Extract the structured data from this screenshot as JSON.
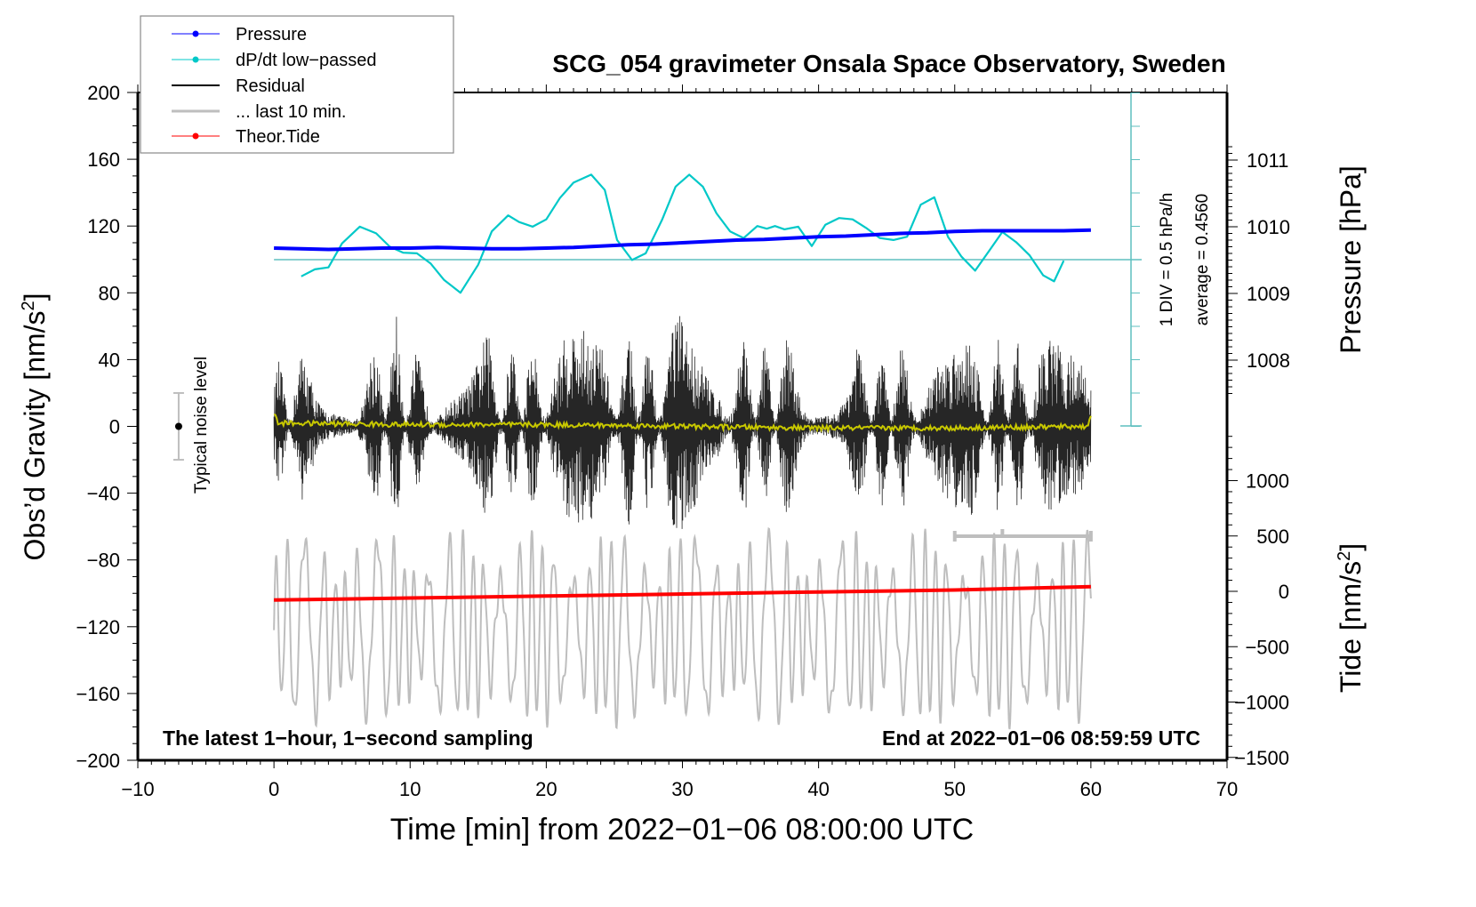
{
  "chart_data": {
    "type": "line",
    "title": "SCG_054 gravimeter Onsala Space Observatory, Sweden",
    "xlabel": "Time [min] from 2022−01−06 08:00:00 UTC",
    "ylabel_left": "Obs’d Gravity [nm/s",
    "ylabel_left_sup": "2",
    "ylabel_left_end": "]",
    "ylabel_right_pressure": "Pressure [hPa]",
    "ylabel_right_tide": "Tide [nm/s",
    "ylabel_right_tide_sup": "2",
    "ylabel_right_tide_end": "]",
    "xlim": [
      -10,
      70
    ],
    "xticks": [
      -10,
      0,
      10,
      20,
      30,
      40,
      50,
      60,
      70
    ],
    "xtick_labels": [
      "−10",
      "0",
      "10",
      "20",
      "30",
      "40",
      "50",
      "60",
      "70"
    ],
    "ylim_left": [
      -200,
      200
    ],
    "yticks_left": [
      200,
      160,
      120,
      80,
      40,
      0,
      -40,
      -80,
      -120,
      -160,
      -200
    ],
    "ytick_labels_left": [
      "200",
      "160",
      "120",
      "80",
      "40",
      "0",
      "−40",
      "−80",
      "−120",
      "−160",
      "−200"
    ],
    "pressure_ticks": [
      1011,
      1010,
      1009,
      1008
    ],
    "pressure_tick_labels": [
      "1011",
      "1010",
      "1009",
      "1008"
    ],
    "tide_ticks": [
      1000,
      500,
      0,
      -500,
      -1000,
      -1500
    ],
    "tide_tick_labels": [
      "1000",
      "500",
      "0",
      "−500",
      "−1000",
      "−1500"
    ],
    "legend": {
      "placement": "top-left",
      "entries": [
        {
          "label": "Pressure",
          "color": "#0000ff",
          "marker": true
        },
        {
          "label": "dP/dt low−passed",
          "color": "#00c8c8",
          "marker": true
        },
        {
          "label": "Residual",
          "color": "#000000",
          "marker": false
        },
        {
          "label": "... last 10 min.",
          "color": "#bebebe",
          "marker": false
        },
        {
          "label": "Theor.Tide",
          "color": "#ff0000",
          "marker": true
        }
      ]
    },
    "annotations": {
      "bottom_left": "The latest 1−hour, 1−second sampling",
      "bottom_right": "End at 2022−01−06 08:59:59 UTC",
      "noise_label": "Typical noise level",
      "dpdt_scale": "1 DIV = 0.5 hPa/h",
      "dpdt_average": "average = 0.4560"
    },
    "noise_bar": {
      "x": -7,
      "center": 0,
      "half_range": 20
    },
    "last10_bar": {
      "x_start": 50,
      "x_end": 60,
      "mid": 53.5
    },
    "dpdt_average_hpa_per_h": 0.456,
    "dpdt_div_hpa_per_h": 0.5,
    "series": [
      {
        "name": "Pressure",
        "unit": "hPa",
        "color": "#0000ff",
        "x": [
          0,
          2,
          4,
          6,
          8,
          10,
          12,
          14,
          16,
          18,
          20,
          22,
          24,
          26,
          28,
          30,
          32,
          34,
          36,
          38,
          40,
          42,
          44,
          46,
          48,
          50,
          52,
          54,
          56,
          58,
          60
        ],
        "values": [
          1009.68,
          1009.67,
          1009.66,
          1009.67,
          1009.68,
          1009.68,
          1009.69,
          1009.68,
          1009.67,
          1009.67,
          1009.68,
          1009.69,
          1009.71,
          1009.73,
          1009.74,
          1009.76,
          1009.78,
          1009.8,
          1009.81,
          1009.83,
          1009.85,
          1009.86,
          1009.88,
          1009.9,
          1009.91,
          1009.93,
          1009.94,
          1009.94,
          1009.94,
          1009.94,
          1009.95
        ]
      },
      {
        "name": "dP/dt low−passed",
        "unit": "hPa/h",
        "color": "#00c8c8",
        "x": [
          2,
          3,
          4,
          5,
          6.3,
          7.5,
          8.5,
          9.5,
          10.5,
          11.5,
          12.5,
          13.7,
          15,
          16,
          17.2,
          18,
          19,
          20,
          21,
          22,
          23.3,
          24.3,
          25.2,
          26.3,
          27.3,
          28.5,
          29.5,
          30.5,
          31.5,
          32.5,
          33.5,
          34.5,
          35.5,
          36.2,
          36.8,
          37.5,
          38.5,
          39.5,
          40.5,
          41.5,
          42.5,
          43.5,
          44.5,
          45.5,
          46.5,
          47.5,
          48.5,
          49.5,
          50.5,
          51.5,
          52.5,
          53.5,
          54.5,
          55.5,
          56.5,
          57.3,
          58
        ],
        "values": [
          0.205,
          0.31,
          0.34,
          0.7,
          0.95,
          0.85,
          0.65,
          0.56,
          0.55,
          0.4,
          0.15,
          -0.04,
          0.38,
          0.88,
          1.12,
          1.02,
          0.95,
          1.06,
          1.38,
          1.61,
          1.73,
          1.5,
          0.75,
          0.45,
          0.55,
          1.05,
          1.55,
          1.73,
          1.55,
          1.15,
          0.88,
          0.78,
          0.96,
          0.92,
          0.96,
          0.91,
          0.95,
          0.66,
          0.98,
          1.08,
          1.06,
          0.93,
          0.78,
          0.75,
          0.8,
          1.28,
          1.39,
          0.8,
          0.5,
          0.29,
          0.58,
          0.87,
          0.72,
          0.52,
          0.22,
          0.13,
          0.44
        ]
      },
      {
        "name": "Residual",
        "unit": "nm/s²",
        "color": "#000000",
        "description": "1-second residual noise oscillating roughly ±50 nm/s² around 0, peaks up to ~80",
        "x_range": [
          0,
          60
        ],
        "envelope_x": [
          0,
          2,
          4,
          6,
          8,
          9,
          10,
          12,
          14,
          16,
          18,
          20,
          22,
          24,
          26,
          28,
          30,
          31,
          32,
          34,
          36,
          38,
          40,
          42,
          44,
          46,
          48,
          50,
          52,
          54,
          56,
          58,
          60
        ],
        "envelope_amp": [
          38,
          45,
          35,
          40,
          55,
          70,
          45,
          40,
          55,
          55,
          50,
          55,
          60,
          55,
          60,
          50,
          75,
          80,
          55,
          60,
          50,
          55,
          55,
          50,
          45,
          55,
          50,
          60,
          50,
          55,
          55,
          50,
          48
        ]
      },
      {
        "name": "Residual mean",
        "unit": "nm/s²",
        "color": "#c8c800",
        "x": [
          0,
          0.3,
          10,
          20,
          30,
          40,
          50,
          59.7,
          60
        ],
        "values": [
          8,
          2,
          1,
          1,
          0,
          -1,
          -1,
          0,
          5
        ]
      },
      {
        "name": "... last 10 min.",
        "unit": "nm/s² (tide axis scale)",
        "color": "#bebebe",
        "description": "Overlay of last 10 minutes of residual, strongly oscillating between about -1250 and +550 on tide axis",
        "x_range": [
          0,
          60
        ]
      },
      {
        "name": "Theor.Tide",
        "unit": "nm/s²",
        "color": "#ff0000",
        "x": [
          0,
          10,
          20,
          30,
          40,
          50,
          60
        ],
        "values": [
          -75,
          -60,
          -45,
          -35,
          -25,
          -10,
          45
        ]
      }
    ]
  }
}
